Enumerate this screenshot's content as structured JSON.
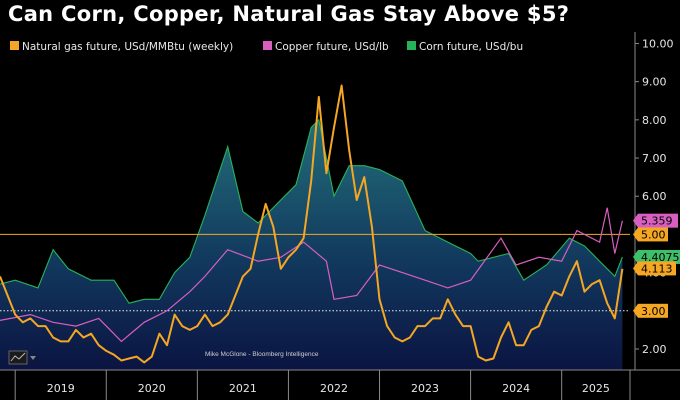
{
  "title": "Can Corn, Copper, Natural Gas Stay Above $5?",
  "credit": "Mike McGlone - Bloomberg Intelligence",
  "colors": {
    "background": "#000000",
    "gas": "#f5a623",
    "copper": "#d85fc0",
    "corn": "#27b35a",
    "corn_fill_top": "#1f6a72",
    "corn_fill_bottom": "#0a1445",
    "reference": "#f5a623"
  },
  "chart_data": {
    "type": "line",
    "x_tick_labels": [
      "2019",
      "2020",
      "2021",
      "2022",
      "2023",
      "2024",
      "2025"
    ],
    "xlim": [
      "2018-11",
      "2025-10"
    ],
    "y_tick_labels": [
      "2.00",
      "3.00",
      "4.00",
      "5.00",
      "6.00",
      "7.00",
      "8.00",
      "9.00",
      "10.00"
    ],
    "ylim": [
      1.45,
      10.3
    ],
    "reference_lines": [
      {
        "value": 5.0,
        "label": "5.00",
        "style": "solid"
      },
      {
        "value": 3.0,
        "label": "3.00",
        "style": "dotted"
      }
    ],
    "series": [
      {
        "name": "Natural gas future, USd/MMBtu (weekly)",
        "color": "#f5a623",
        "last_value_label": "4.113",
        "x": [
          "2018-11",
          "2018-12",
          "2019-01",
          "2019-02",
          "2019-03",
          "2019-04",
          "2019-05",
          "2019-06",
          "2019-07",
          "2019-08",
          "2019-09",
          "2019-10",
          "2019-11",
          "2019-12",
          "2020-01",
          "2020-02",
          "2020-03",
          "2020-04",
          "2020-05",
          "2020-06",
          "2020-07",
          "2020-08",
          "2020-09",
          "2020-10",
          "2020-11",
          "2020-12",
          "2021-01",
          "2021-02",
          "2021-03",
          "2021-04",
          "2021-05",
          "2021-06",
          "2021-07",
          "2021-08",
          "2021-09",
          "2021-10",
          "2021-11",
          "2021-12",
          "2022-01",
          "2022-02",
          "2022-03",
          "2022-04",
          "2022-05",
          "2022-06",
          "2022-07",
          "2022-08",
          "2022-09",
          "2022-10",
          "2022-11",
          "2022-12",
          "2023-01",
          "2023-02",
          "2023-03",
          "2023-04",
          "2023-05",
          "2023-06",
          "2023-07",
          "2023-08",
          "2023-09",
          "2023-10",
          "2023-11",
          "2023-12",
          "2024-01",
          "2024-02",
          "2024-03",
          "2024-04",
          "2024-05",
          "2024-06",
          "2024-07",
          "2024-08",
          "2024-09",
          "2024-10",
          "2024-11",
          "2024-12",
          "2025-01",
          "2025-02",
          "2025-03",
          "2025-04",
          "2025-05",
          "2025-06",
          "2025-07",
          "2025-08",
          "2025-09"
        ],
        "values": [
          3.9,
          3.4,
          2.9,
          2.7,
          2.8,
          2.6,
          2.6,
          2.3,
          2.2,
          2.2,
          2.5,
          2.3,
          2.4,
          2.1,
          1.95,
          1.85,
          1.7,
          1.75,
          1.8,
          1.65,
          1.8,
          2.4,
          2.1,
          2.9,
          2.6,
          2.5,
          2.6,
          2.9,
          2.6,
          2.7,
          2.9,
          3.4,
          3.9,
          4.1,
          5.0,
          5.8,
          5.2,
          4.1,
          4.4,
          4.6,
          4.9,
          6.4,
          8.6,
          6.6,
          7.8,
          8.9,
          7.2,
          5.9,
          6.5,
          5.2,
          3.3,
          2.6,
          2.3,
          2.2,
          2.3,
          2.6,
          2.6,
          2.8,
          2.8,
          3.3,
          2.9,
          2.6,
          2.6,
          1.8,
          1.7,
          1.75,
          2.3,
          2.7,
          2.1,
          2.1,
          2.5,
          2.6,
          3.1,
          3.5,
          3.4,
          3.9,
          4.3,
          3.5,
          3.7,
          3.8,
          3.2,
          2.8,
          4.1
        ]
      },
      {
        "name": "Copper future, USd/lb",
        "color": "#d85fc0",
        "last_value_label": "5.359",
        "x": [
          "2018-11",
          "2019-03",
          "2019-06",
          "2019-09",
          "2019-12",
          "2020-01",
          "2020-03",
          "2020-06",
          "2020-09",
          "2020-12",
          "2021-02",
          "2021-05",
          "2021-09",
          "2021-12",
          "2022-03",
          "2022-06",
          "2022-07",
          "2022-10",
          "2023-01",
          "2023-04",
          "2023-07",
          "2023-10",
          "2024-01",
          "2024-05",
          "2024-07",
          "2024-10",
          "2025-01",
          "2025-03",
          "2025-06",
          "2025-07",
          "2025-08",
          "2025-09"
        ],
        "values": [
          2.75,
          2.9,
          2.7,
          2.6,
          2.8,
          2.6,
          2.2,
          2.7,
          3.0,
          3.5,
          3.9,
          4.6,
          4.3,
          4.4,
          4.8,
          4.3,
          3.3,
          3.4,
          4.2,
          4.0,
          3.8,
          3.6,
          3.8,
          4.9,
          4.2,
          4.4,
          4.3,
          5.1,
          4.8,
          5.7,
          4.5,
          5.36
        ]
      },
      {
        "name": "Corn future, USd/bu",
        "color": "#27b35a",
        "last_value_label": "4.4075",
        "x": [
          "2018-11",
          "2019-01",
          "2019-04",
          "2019-06",
          "2019-08",
          "2019-11",
          "2020-02",
          "2020-04",
          "2020-06",
          "2020-08",
          "2020-10",
          "2020-12",
          "2021-02",
          "2021-05",
          "2021-07",
          "2021-09",
          "2021-12",
          "2022-02",
          "2022-04",
          "2022-05",
          "2022-07",
          "2022-09",
          "2022-11",
          "2023-01",
          "2023-04",
          "2023-07",
          "2023-10",
          "2024-01",
          "2024-02",
          "2024-06",
          "2024-08",
          "2024-11",
          "2025-02",
          "2025-04",
          "2025-06",
          "2025-08",
          "2025-09"
        ],
        "values": [
          3.7,
          3.8,
          3.6,
          4.6,
          4.1,
          3.8,
          3.8,
          3.2,
          3.3,
          3.3,
          4.0,
          4.4,
          5.5,
          7.3,
          5.6,
          5.3,
          5.9,
          6.3,
          7.8,
          8.0,
          6.0,
          6.8,
          6.8,
          6.7,
          6.4,
          5.1,
          4.8,
          4.5,
          4.3,
          4.5,
          3.8,
          4.2,
          4.9,
          4.7,
          4.3,
          3.9,
          4.41
        ]
      }
    ]
  }
}
